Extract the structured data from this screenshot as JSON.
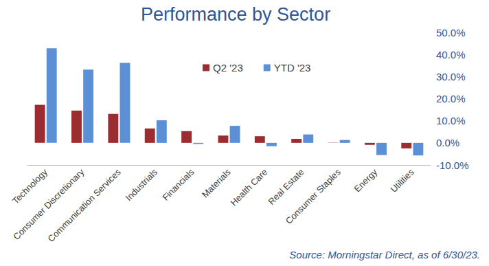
{
  "chart_data": {
    "type": "bar",
    "title": "Performance by Sector",
    "annotations": [
      "Source: Morningstar Direct, as of 6/30/23."
    ],
    "categories": [
      "Technology",
      "Consumer Discretionary",
      "Communication Services",
      "Industrials",
      "Financials",
      "Materials",
      "Health Care",
      "Real Estate",
      "Consumer Staples",
      "Energy",
      "Utilities"
    ],
    "series": [
      {
        "name": "Q2 '23",
        "color": "#9b2d30",
        "values": [
          17.2,
          14.6,
          13.1,
          6.5,
          5.3,
          3.3,
          3.0,
          1.8,
          0.1,
          -0.9,
          -2.5
        ]
      },
      {
        "name": "YTD '23",
        "color": "#5b8fd6",
        "values": [
          42.8,
          33.1,
          36.2,
          10.2,
          -0.5,
          7.7,
          -1.5,
          3.8,
          1.3,
          -5.5,
          -5.7
        ]
      }
    ],
    "ylim": [
      -10,
      50
    ],
    "yticks": [
      {
        "value": -10,
        "label": "-10.0%"
      },
      {
        "value": 0,
        "label": "0.0%"
      },
      {
        "value": 10,
        "label": "10.0%"
      },
      {
        "value": 20,
        "label": "20.0%"
      },
      {
        "value": 30,
        "label": "30.0%"
      },
      {
        "value": 40,
        "label": "40.0%"
      },
      {
        "value": 50,
        "label": "50.0%"
      }
    ],
    "grid": false,
    "legend": "top",
    "data_labels": false
  }
}
